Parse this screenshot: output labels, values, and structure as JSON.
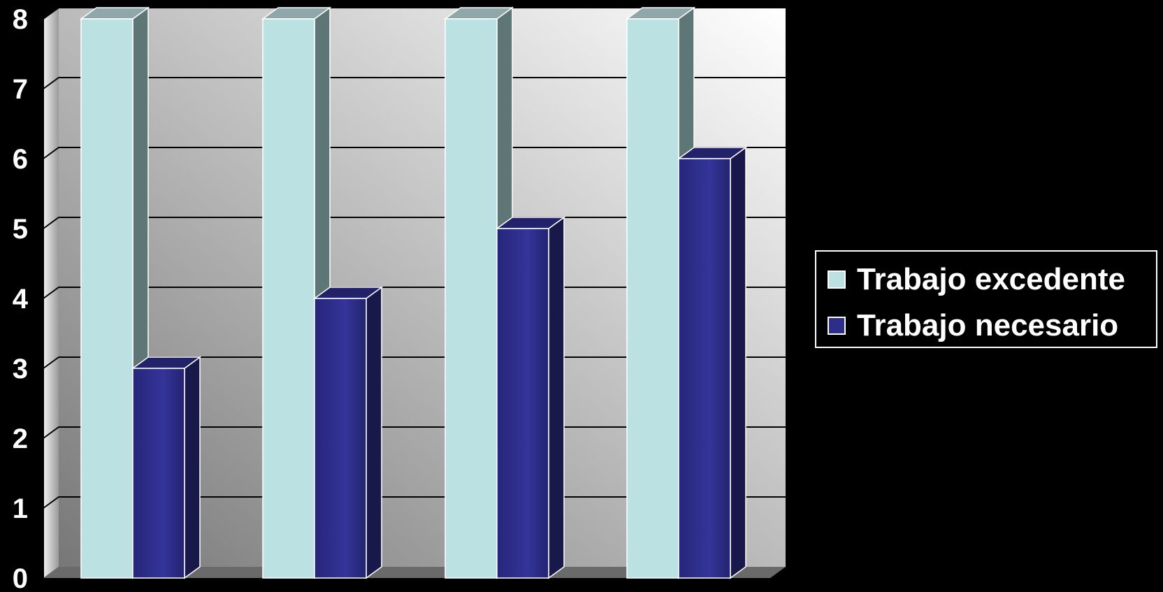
{
  "chart_data": {
    "type": "bar",
    "categories": [
      "",
      "",
      "",
      ""
    ],
    "series": [
      {
        "name": "Trabajo excedente",
        "values": [
          8,
          8,
          8,
          8
        ],
        "color": "#bbe1e3"
      },
      {
        "name": "Trabajo necesario",
        "values": [
          3,
          4,
          5,
          6
        ],
        "color": "#2e2e8a"
      }
    ],
    "ylim": [
      0,
      8
    ],
    "yticks": [
      "0",
      "1",
      "2",
      "3",
      "4",
      "5",
      "6",
      "7",
      "8"
    ],
    "grid": true,
    "legend_position": "right",
    "title": "",
    "xlabel": "",
    "ylabel": ""
  }
}
